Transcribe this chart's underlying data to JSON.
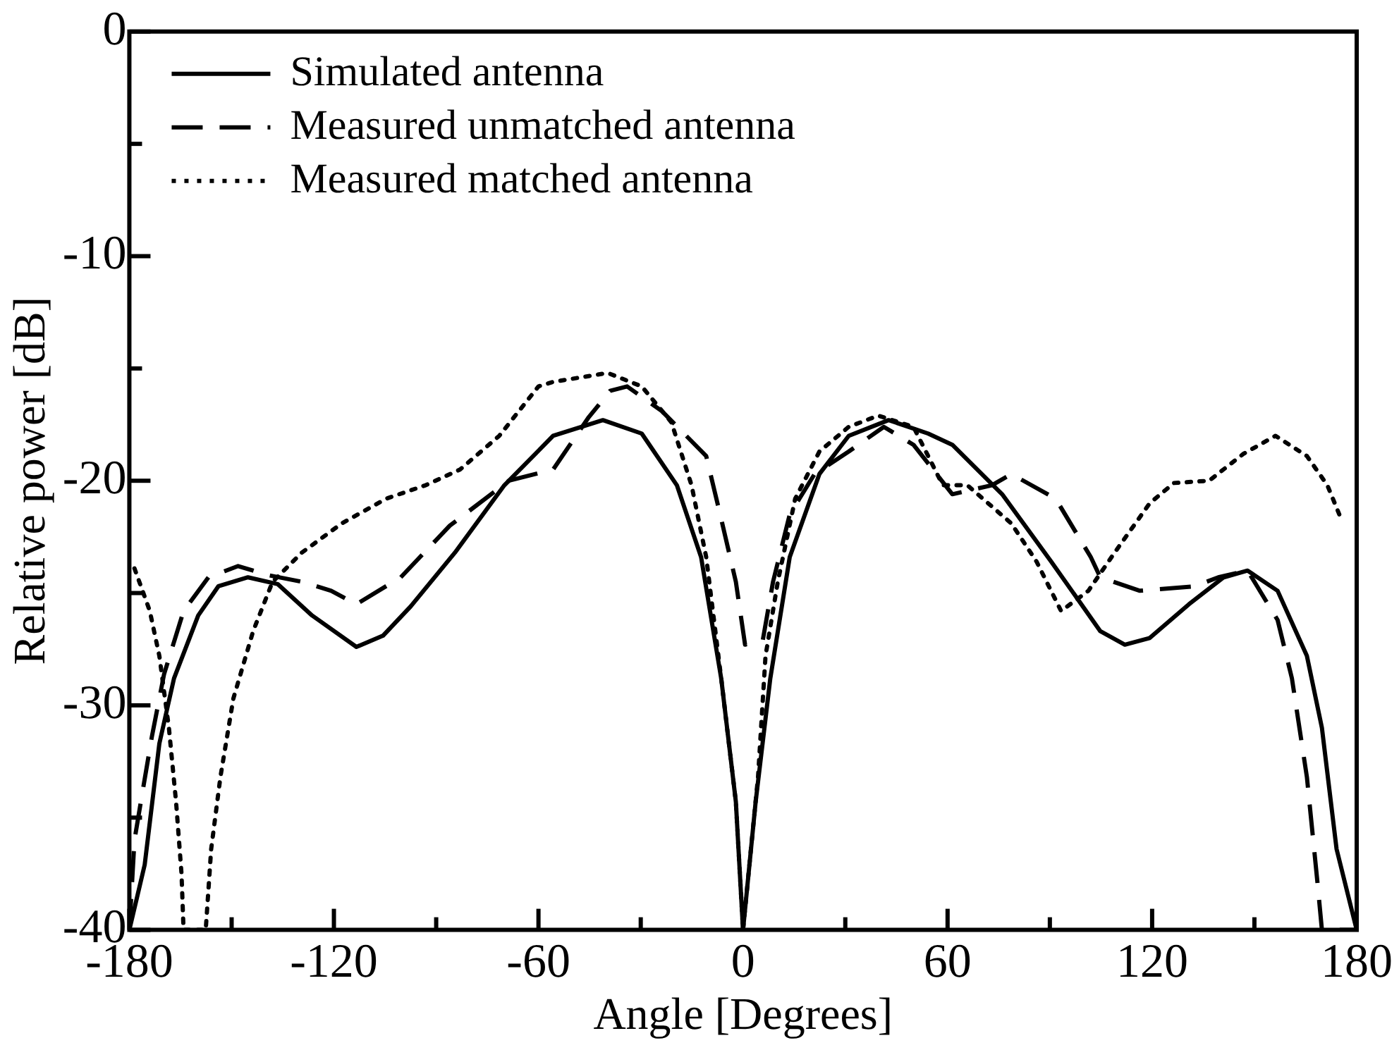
{
  "chart_data": {
    "type": "line",
    "xlabel": "Angle [Degrees]",
    "ylabel": "Relative power [dB]",
    "xlim": [
      -180,
      180
    ],
    "ylim": [
      -40,
      0
    ],
    "xticks": [
      -180,
      {
        "value": -150,
        "label": null
      },
      -120,
      {
        "value": -90,
        "label": null
      },
      -60,
      {
        "value": -30,
        "label": null
      },
      0,
      {
        "value": 30,
        "label": null
      },
      60,
      {
        "value": 90,
        "label": null
      },
      120,
      {
        "value": 150,
        "label": null
      },
      180
    ],
    "yticks": [
      -40,
      {
        "value": -35,
        "label": null
      },
      -30,
      {
        "value": -25,
        "label": null
      },
      -20,
      {
        "value": -15,
        "label": null
      },
      -10,
      {
        "value": -5,
        "label": null
      },
      0
    ],
    "legend": "top left",
    "marker": "none",
    "series": [
      {
        "name": "Simulated antenna",
        "color": "#000000",
        "line_style": "solid",
        "x": [
          -180,
          -175.5,
          -171.2,
          -166.9,
          -159.8,
          -153.9,
          -145.2,
          -136.5,
          -126.4,
          -113.4,
          -105.6,
          -97.5,
          -84.5,
          -70,
          -55.7,
          -41.1,
          -29.7,
          -19.4,
          -12.3,
          -6.4,
          -2.1,
          0,
          3.7,
          8,
          13.7,
          22.4,
          31,
          42.7,
          54.3,
          61.4,
          76,
          90.4,
          104.8,
          112,
          119.3,
          130.8,
          141,
          148,
          156.8,
          165.4,
          169.8,
          174.1,
          180
        ],
        "values": [
          -40,
          -37.1,
          -31.7,
          -28.8,
          -26,
          -24.7,
          -24.3,
          -24.6,
          -26,
          -27.4,
          -26.9,
          -25.6,
          -23.2,
          -20.2,
          -18,
          -17.3,
          -17.9,
          -20.2,
          -23.4,
          -28.8,
          -34.3,
          -40,
          -34.3,
          -28.8,
          -23.4,
          -19.7,
          -18,
          -17.3,
          -17.9,
          -18.4,
          -20.6,
          -23.6,
          -26.7,
          -27.3,
          -27,
          -25.5,
          -24.3,
          -24,
          -24.9,
          -27.8,
          -31,
          -36.4,
          -40
        ]
      },
      {
        "name": "Measured unmatched antenna",
        "color": "#000000",
        "line_style": "dashed",
        "x": [
          -180,
          -178.5,
          -176.3,
          -173.4,
          -169.8,
          -164.1,
          -156.8,
          -148.1,
          -139.4,
          -129.4,
          -120.8,
          -113.4,
          -100.4,
          -86,
          -68.7,
          -55.7,
          -45.4,
          -39,
          -34,
          -23.8,
          -10.8,
          -6.4,
          -2.1,
          0.6,
          5.8,
          8.8,
          13.7,
          21,
          31,
          41.3,
          50,
          61.4,
          73,
          78.7,
          91.7,
          102,
          104.8,
          116.4,
          132.4,
          139.4,
          148,
          156.8,
          161,
          165.4,
          168.5,
          169.8,
          180
        ],
        "values": [
          -40,
          -36,
          -34,
          -31.4,
          -28.6,
          -25.8,
          -24.3,
          -23.8,
          -24.2,
          -24.5,
          -24.9,
          -25.5,
          -24.3,
          -22,
          -20,
          -19.5,
          -17.2,
          -16,
          -15.8,
          -16.9,
          -18.9,
          -21.7,
          -24.5,
          -27.3,
          -27.1,
          -24.5,
          -21.5,
          -19.7,
          -18.7,
          -17.6,
          -18.4,
          -20.6,
          -20.2,
          -19.7,
          -20.8,
          -23.4,
          -24.3,
          -24.9,
          -24.7,
          -24.3,
          -24,
          -26.2,
          -28.8,
          -33.2,
          -37.9,
          -40,
          -40
        ]
      },
      {
        "name": "Measured matched antenna",
        "color": "#000000",
        "line_style": "dotted",
        "x": [
          -178.5,
          -174,
          -171.2,
          -168.4,
          -166.3,
          -164.7,
          -164.1,
          -157.6,
          -156,
          -153.3,
          -149.5,
          -143.7,
          -138,
          -129.4,
          -117.7,
          -104.7,
          -93.1,
          -83,
          -71.5,
          -60,
          -55.7,
          -39.7,
          -29.7,
          -21,
          -15.1,
          -10.8,
          -6.4,
          -2.1,
          0,
          4.4,
          6.6,
          10.2,
          15.3,
          22.4,
          31,
          39.7,
          50,
          58.6,
          65.8,
          78.7,
          86.1,
          93.3,
          101.3,
          109,
          119.3,
          126.4,
          136.7,
          146.8,
          156.2,
          165.4,
          171.4,
          175.7
        ],
        "values": [
          -23.9,
          -25.8,
          -27.8,
          -31,
          -34.3,
          -37.5,
          -40,
          -40,
          -36.4,
          -33.2,
          -29.7,
          -26.7,
          -24.5,
          -23.2,
          -21.9,
          -20.8,
          -20.2,
          -19.5,
          -18,
          -15.8,
          -15.6,
          -15.2,
          -15.8,
          -17.4,
          -20.2,
          -23.4,
          -28.8,
          -34.3,
          -40,
          -33.2,
          -27.8,
          -24.5,
          -20.8,
          -18.7,
          -17.6,
          -17.1,
          -17.6,
          -20.2,
          -20.2,
          -21.9,
          -23.6,
          -25.8,
          -24.9,
          -23.2,
          -21,
          -20.1,
          -20,
          -18.8,
          -18,
          -18.9,
          -20.2,
          -21.8
        ]
      }
    ]
  }
}
